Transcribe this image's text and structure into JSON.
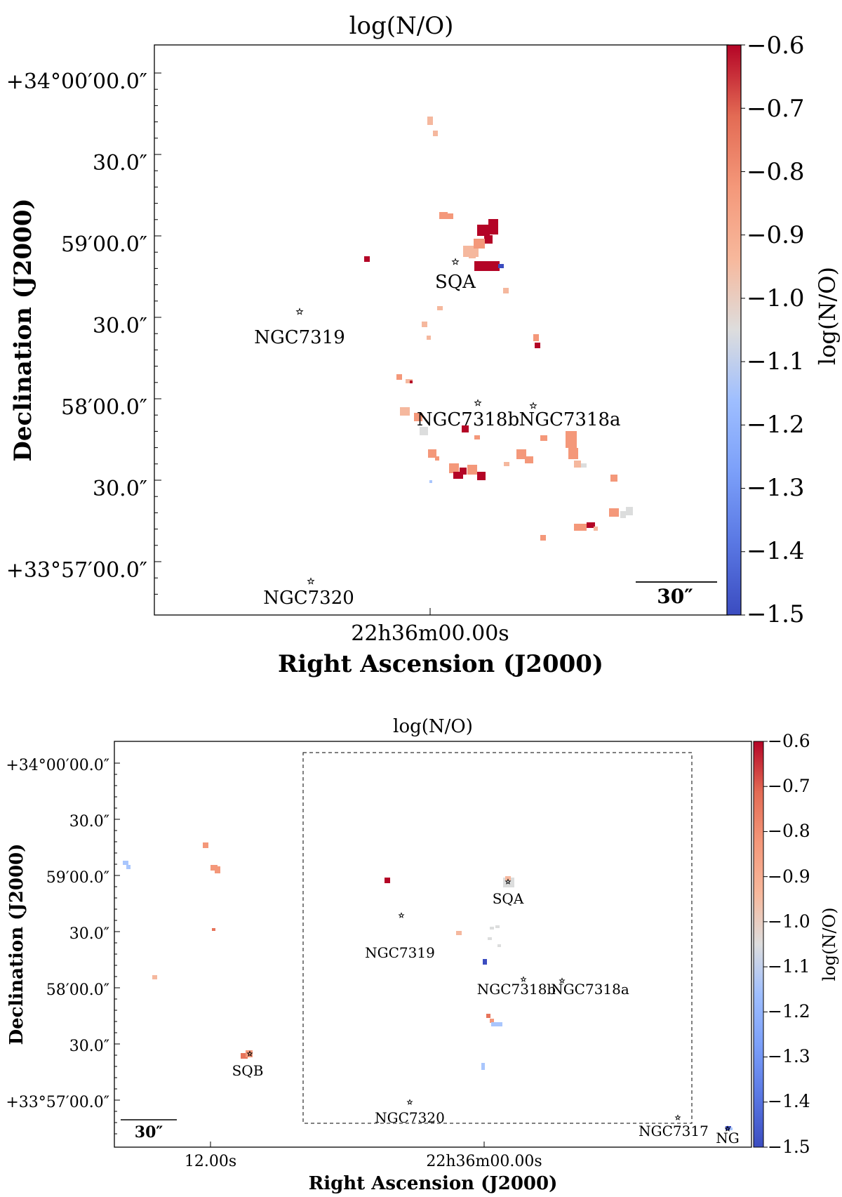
{
  "chart_data": [
    {
      "type": "heatmap",
      "title": "log(N/O)",
      "xlabel": "Right Ascension (J2000)",
      "ylabel": "Declination (J2000)",
      "colorbar_label": "log(N/O)",
      "colorbar_range": [
        -1.5,
        -0.6
      ],
      "colorbar_ticks": [
        "−0.6",
        "−0.7",
        "−0.8",
        "−0.9",
        "−1.0",
        "−1.1",
        "−1.2",
        "−1.3",
        "−1.4",
        "−1.5"
      ],
      "colormap": "coolwarm",
      "x_tick_labels": [
        "22h36m00.00s"
      ],
      "y_tick_labels": [
        "+34°00′00.0″",
        "30.0″",
        "59′00.0″",
        "30.0″",
        "58′00.0″",
        "30.0″",
        "+33°57′00.0″"
      ],
      "scale_bar": "30″",
      "markers": [
        "SQA",
        "NGC7319",
        "NGC7318b",
        "NGC7318a",
        "NGC7320"
      ]
    },
    {
      "type": "heatmap",
      "title": "log(N/O)",
      "xlabel": "Right Ascension (J2000)",
      "ylabel": "Declination (J2000)",
      "colorbar_label": "log(N/O)",
      "colorbar_range": [
        -1.5,
        -0.6
      ],
      "colorbar_ticks": [
        "−0.6",
        "−0.7",
        "−0.8",
        "−0.9",
        "−1.0",
        "−1.1",
        "−1.2",
        "−1.3",
        "−1.4",
        "−1.5"
      ],
      "colormap": "coolwarm",
      "x_tick_labels": [
        "12.00s",
        "22h36m00.00s"
      ],
      "y_tick_labels": [
        "+34°00′00.0″",
        "30.0″",
        "59′00.0″",
        "30.0″",
        "58′00.0″",
        "30.0″",
        "+33°57′00.0″"
      ],
      "scale_bar": "30″",
      "markers": [
        "SQA",
        "NGC7319",
        "NGC7318b",
        "NGC7318a",
        "SQB",
        "NGC7320",
        "NGC7317",
        "NG"
      ]
    }
  ],
  "colors": {
    "red": "#b40426",
    "orange_red": "#e7745b",
    "salmon": "#f4987a",
    "light_salmon": "#f5b89e",
    "neutral": "#dcdddd",
    "light_blue": "#a9c6fd",
    "blue": "#3b4cc0"
  }
}
